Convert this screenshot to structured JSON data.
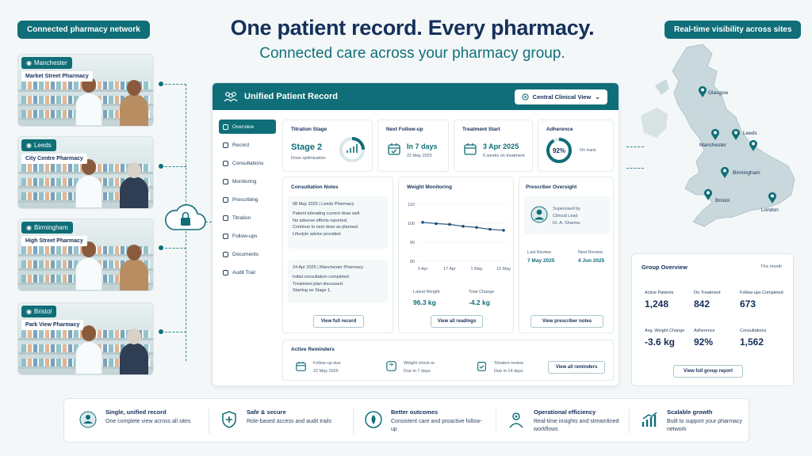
{
  "header": {
    "network_pill": "Connected pharmacy network",
    "visibility_pill": "Real-time visibility across sites",
    "title": "One patient record. Every pharmacy.",
    "subtitle": "Connected care across your pharmacy group."
  },
  "pharmacies": [
    {
      "city": "Manchester",
      "name": "Market Street Pharmacy"
    },
    {
      "city": "Leeds",
      "name": "City Centre Pharmacy"
    },
    {
      "city": "Birmingham",
      "name": "High Street Pharmacy"
    },
    {
      "city": "Bristol",
      "name": "Park View Pharmacy"
    }
  ],
  "panel": {
    "title": "Unified Patient Record",
    "view_selector": "Central Clinical View",
    "nav": [
      "Overview",
      "Record",
      "Consultations",
      "Monitoring",
      "Prescribing",
      "Titration",
      "Follow-ups",
      "Documents",
      "Audit Trail"
    ],
    "titration": {
      "label": "Titration Stage",
      "value": "Stage 2",
      "sub": "Dose optimisation"
    },
    "followup": {
      "label": "Next Follow-up",
      "value": "In 7 days",
      "sub": "22 May 2025"
    },
    "treatment": {
      "label": "Treatment Start",
      "value": "3 Apr 2025",
      "sub": "6 weeks on treatment"
    },
    "adherence": {
      "label": "Adherence",
      "value": "92%",
      "value_fraction": 0.92,
      "sub": "On track"
    },
    "notes": {
      "title": "Consultation Notes",
      "items": [
        {
          "meta": "08 May 2025  |  Leeds Pharmacy",
          "lines": [
            "Patient tolerating current dose well.",
            "No adverse effects reported.",
            "Continue to next dose as planned.",
            "Lifestyle advice provided."
          ]
        },
        {
          "meta": "24 Apr 2025  |  Manchester Pharmacy",
          "lines": [
            "Initial consultation completed.",
            "Treatment plan discussed.",
            "Starting on Stage 1."
          ]
        }
      ],
      "button": "View full record"
    },
    "weight": {
      "title": "Weight Monitoring",
      "latest_label": "Latest Weight",
      "latest_value": "96.3 kg",
      "change_label": "Total Change",
      "change_value": "-4.2 kg",
      "button": "View all readings"
    },
    "prescriber": {
      "title": "Prescriber Oversight",
      "supervised": "Supervised by",
      "role": "Clinical Lead",
      "name": "Dr. A. Sharma",
      "last_label": "Last Review",
      "last_value": "7 May 2025",
      "next_label": "Next Review",
      "next_value": "4 Jun 2025",
      "button": "View prescriber notes"
    },
    "reminders": {
      "title": "Active Reminders",
      "items": [
        {
          "title": "Follow-up due",
          "sub": "22 May 2025"
        },
        {
          "title": "Weight check-in",
          "sub": "Due in 7 days"
        },
        {
          "title": "Titration review",
          "sub": "Due in 14 days"
        }
      ],
      "button": "View all reminders"
    }
  },
  "chart_data": {
    "type": "line",
    "title": "Weight Monitoring",
    "x": [
      "3 Apr",
      "10 Apr",
      "17 Apr",
      "24 Apr",
      "1 May",
      "8 May",
      "15 May"
    ],
    "x_tick_labels": [
      "3 Apr",
      "17 Apr",
      "1 May",
      "15 May"
    ],
    "values": [
      100.5,
      99.8,
      99.4,
      98.4,
      97.8,
      96.8,
      96.3
    ],
    "ylim": [
      80,
      110
    ],
    "y_ticks": [
      "110",
      "100",
      "90",
      "80"
    ],
    "grid": true
  },
  "map": {
    "sites": [
      "Glasgow",
      "Leeds",
      "Manchester",
      "Birmingham",
      "Bristol",
      "London"
    ]
  },
  "group": {
    "title": "Group Overview",
    "period": "This month",
    "stats": [
      {
        "label": "Active Patients",
        "value": "1,248"
      },
      {
        "label": "On Treatment",
        "value": "842"
      },
      {
        "label": "Follow-ups Completed",
        "value": "673"
      },
      {
        "label": "Avg. Weight Change",
        "value": "-3.6 kg"
      },
      {
        "label": "Adherence",
        "value": "92%"
      },
      {
        "label": "Consultations",
        "value": "1,562"
      }
    ],
    "button": "View full group report"
  },
  "features": [
    {
      "icon": "unified-record-icon",
      "title": "Single, unified record",
      "desc": "One complete view across all sites"
    },
    {
      "icon": "shield-plus-icon",
      "title": "Safe & secure",
      "desc": "Role-based access and audit trails"
    },
    {
      "icon": "outcomes-icon",
      "title": "Better outcomes",
      "desc": "Consistent care and proactive follow-up"
    },
    {
      "icon": "team-icon",
      "title": "Operational efficiency",
      "desc": "Real-time insights and streamlined workflows"
    },
    {
      "icon": "growth-icon",
      "title": "Scalable growth",
      "desc": "Built to support your pharmacy network"
    }
  ],
  "colors": {
    "brand": "#0f6e78",
    "navy": "#15305a",
    "background": "#f3f7f8"
  }
}
